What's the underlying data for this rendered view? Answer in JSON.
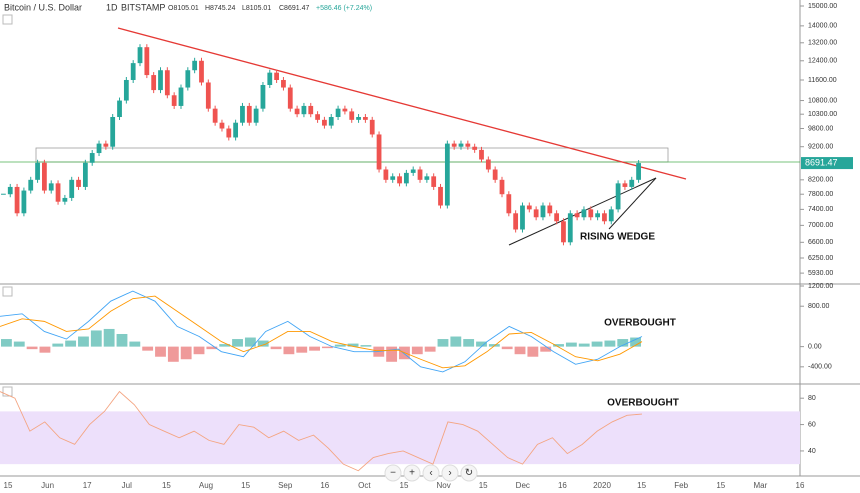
{
  "header": {
    "symbol": "Bitcoin / U.S. Dollar",
    "interval": "1D",
    "exchange": "BITSTAMP",
    "open": "O8105.01",
    "high": "H8745.24",
    "low": "L8105.01",
    "close": "C8691.47",
    "change": "+586.46 (+7.24%)"
  },
  "toolbar": [
    "−",
    "+",
    "‹",
    "›",
    "↻"
  ],
  "chart_data": [
    {
      "type": "candlestick",
      "log_scale": true,
      "up_color": "#26a69a",
      "down_color": "#ef5350",
      "annotation": "RISING WEDGE",
      "last_label": "8691.47",
      "close": [
        7800,
        8000,
        7300,
        7900,
        8200,
        8700,
        7900,
        8100,
        7600,
        7700,
        8200,
        8000,
        8700,
        9000,
        9300,
        9200,
        10200,
        10800,
        11600,
        12300,
        13000,
        11800,
        11200,
        12000,
        11000,
        10600,
        11300,
        12000,
        12400,
        11500,
        10500,
        10000,
        9800,
        9500,
        10000,
        10600,
        10000,
        10500,
        11400,
        11900,
        11600,
        11300,
        10500,
        10300,
        10600,
        10300,
        10100,
        9900,
        10200,
        10500,
        10400,
        10100,
        10200,
        10100,
        9600,
        8500,
        8200,
        8300,
        8100,
        8400,
        8500,
        8200,
        8300,
        8000,
        7500,
        9300,
        9200,
        9300,
        9200,
        9100,
        8800,
        8500,
        8200,
        7800,
        7300,
        6900,
        7500,
        7400,
        7200,
        7500,
        7300,
        7100,
        6600,
        7300,
        7200,
        7400,
        7200,
        7300,
        7100,
        7400,
        8100,
        8000,
        8200,
        8691.47
      ],
      "ylim": [
        5710,
        15316
      ],
      "yticks": [
        {
          "value": 15000,
          "label": "15000.00"
        },
        {
          "value": 14000,
          "label": "14000.00"
        },
        {
          "value": 13200,
          "label": "13200.00"
        },
        {
          "value": 12400,
          "label": "12400.00"
        },
        {
          "value": 11600,
          "label": "11600.00"
        },
        {
          "value": 10800,
          "label": "10800.00"
        },
        {
          "value": 10300,
          "label": "10300.00"
        },
        {
          "value": 9800,
          "label": "9800.00"
        },
        {
          "value": 9200,
          "label": "9200.00"
        },
        {
          "value": 8200,
          "label": "8200.00"
        },
        {
          "value": 7800,
          "label": "7800.00"
        },
        {
          "value": 7400,
          "label": "7400.00"
        },
        {
          "value": 7000,
          "label": "7000.00"
        },
        {
          "value": 6600,
          "label": "6600.00"
        },
        {
          "value": 6250,
          "label": "6250.00"
        },
        {
          "value": 5930,
          "label": "5930.00"
        }
      ],
      "xticks": [
        "15",
        "Jun",
        "17",
        "Jul",
        "15",
        "Aug",
        "15",
        "Sep",
        "16",
        "Oct",
        "15",
        "Nov",
        "15",
        "Dec",
        "16",
        "2020",
        "15",
        "Feb",
        "15",
        "Mar",
        "16"
      ]
    },
    {
      "type": "macd",
      "annotation": "OVERBOUGHT",
      "ylim": [
        -740,
        1220
      ],
      "yticks": [
        {
          "value": 1200,
          "label": "1200.00"
        },
        {
          "value": 800,
          "label": "800.00"
        },
        {
          "value": 0,
          "label": "0.00"
        },
        {
          "value": -400,
          "label": "-400.00"
        }
      ],
      "histogram": [
        150,
        100,
        -50,
        -120,
        60,
        120,
        200,
        320,
        350,
        250,
        100,
        -80,
        -200,
        -300,
        -250,
        -150,
        -50,
        50,
        150,
        180,
        120,
        -50,
        -150,
        -120,
        -80,
        -30,
        40,
        60,
        30,
        -200,
        -300,
        -250,
        -150,
        -100,
        150,
        200,
        150,
        100,
        50,
        -50,
        -150,
        -200,
        -100,
        50,
        80,
        60,
        100,
        120,
        150,
        180
      ],
      "series": [
        {
          "color": "#42a5f5",
          "values": [
            600,
            650,
            300,
            150,
            500,
            900,
            1100,
            900,
            400,
            200,
            -100,
            -200,
            300,
            500,
            200,
            0,
            -100,
            -100,
            -50,
            -400,
            -500,
            -300,
            100,
            400,
            200,
            -100,
            -350,
            -250,
            0,
            200
          ]
        },
        {
          "color": "#ff9800",
          "values": [
            400,
            550,
            500,
            300,
            350,
            700,
            950,
            1000,
            700,
            400,
            100,
            -100,
            50,
            300,
            300,
            100,
            0,
            -80,
            -70,
            -250,
            -420,
            -380,
            -100,
            250,
            280,
            50,
            -200,
            -280,
            -150,
            100
          ]
        }
      ]
    },
    {
      "type": "rsi",
      "annotation": "OVERBOUGHT",
      "color": "#f4a582",
      "band": [
        30,
        70
      ],
      "ylim": [
        21,
        90
      ],
      "yticks": [
        80,
        60,
        40
      ],
      "values": [
        85,
        80,
        55,
        62,
        50,
        45,
        60,
        70,
        85,
        75,
        60,
        55,
        50,
        55,
        48,
        45,
        60,
        58,
        50,
        55,
        48,
        52,
        42,
        30,
        25,
        35,
        38,
        40,
        35,
        30,
        62,
        60,
        55,
        45,
        35,
        30,
        45,
        50,
        38,
        45,
        55,
        62,
        67,
        68
      ]
    }
  ]
}
